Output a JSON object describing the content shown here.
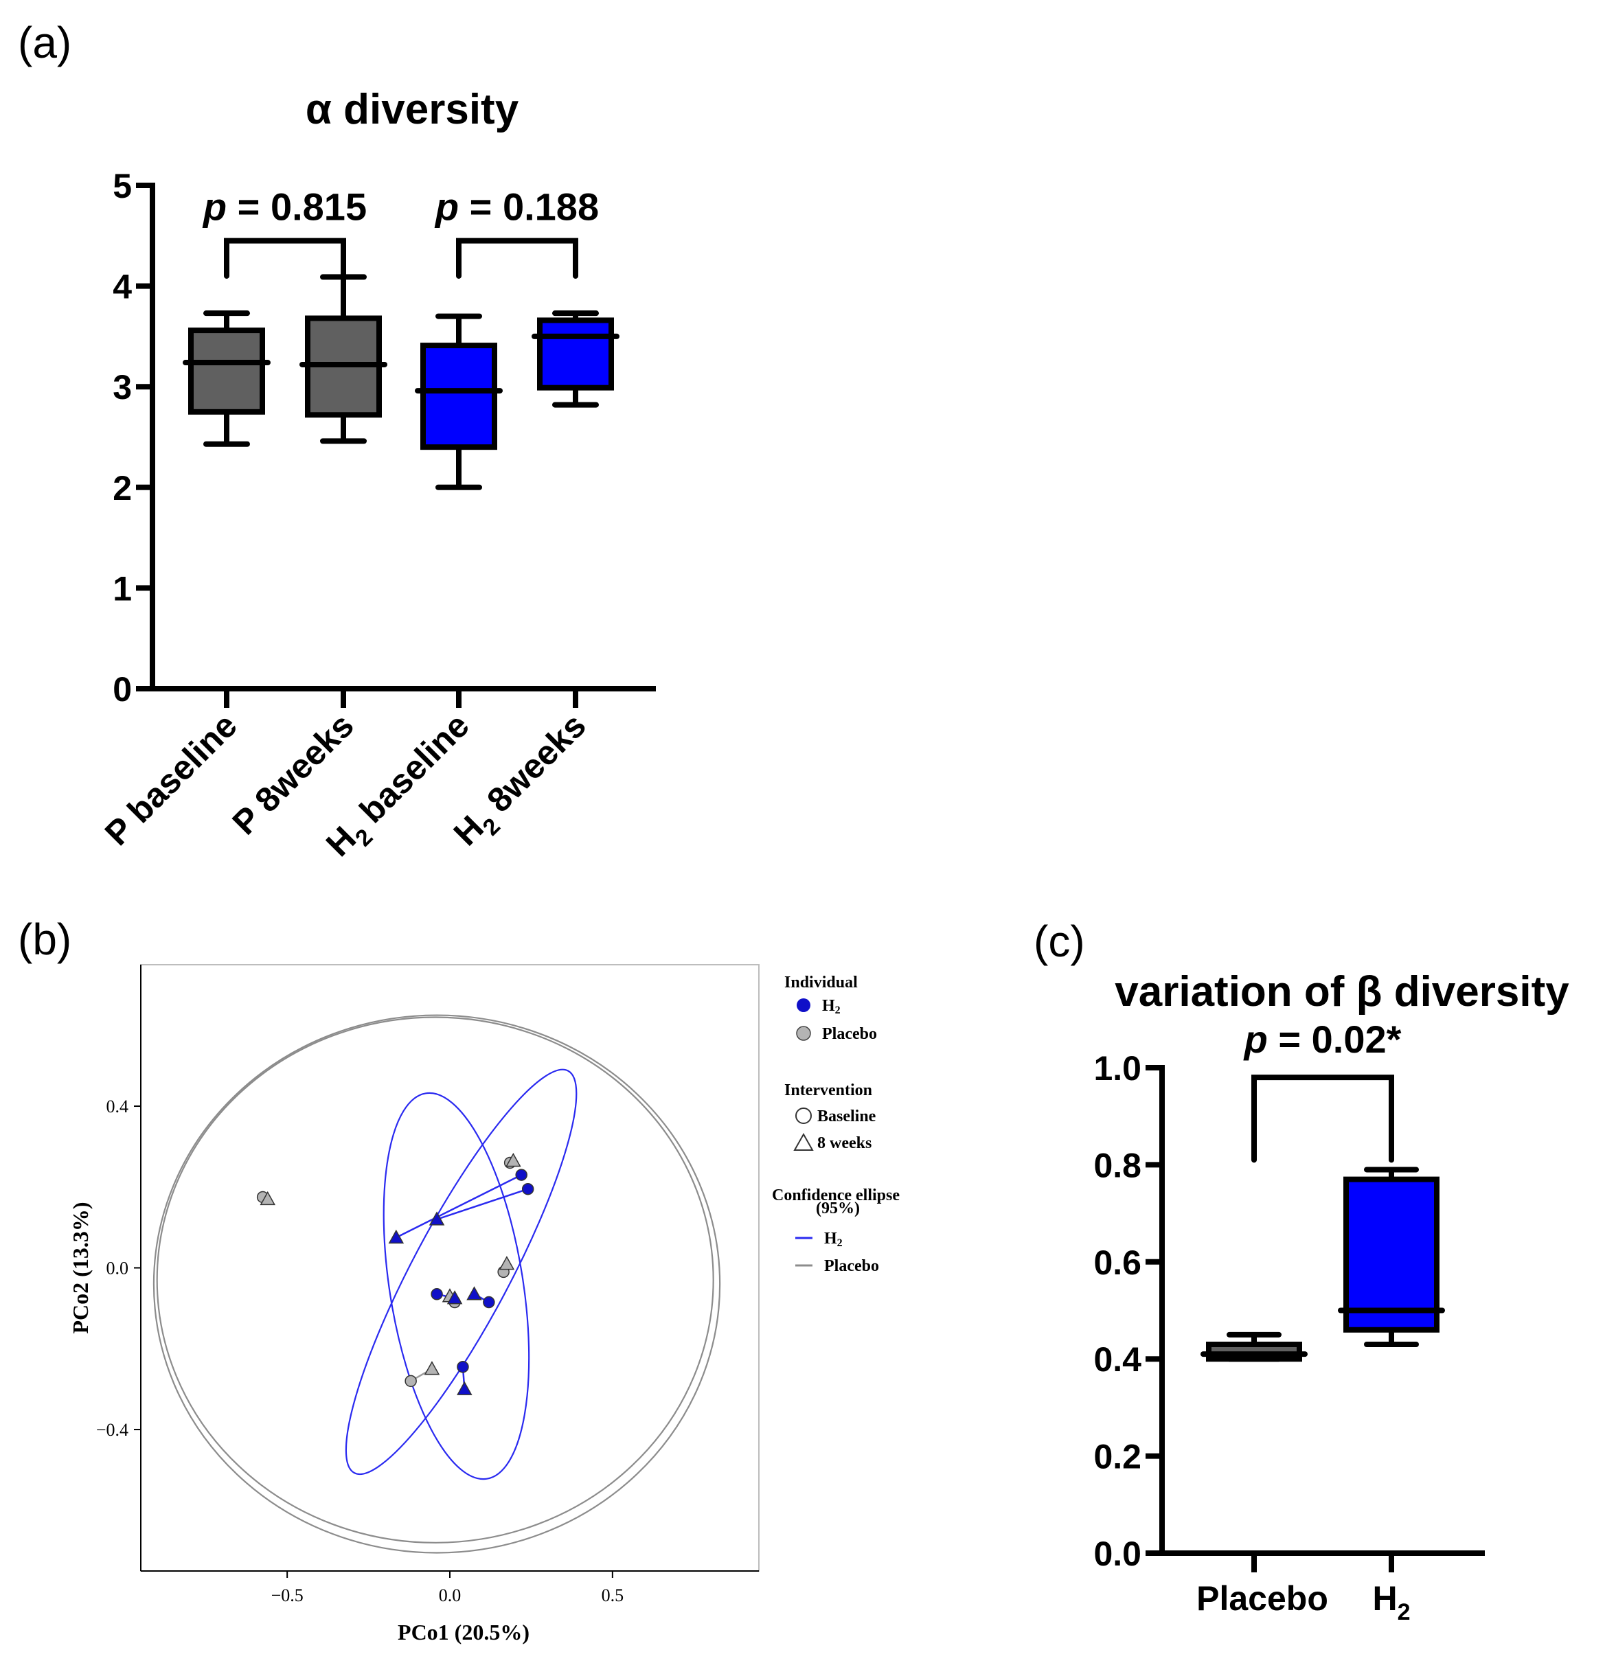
{
  "colors": {
    "placebo": "#606060",
    "h2": "#0000ff",
    "h2_marker": "#1010c8",
    "placebo_marker": "#b4b4b4",
    "placebo_ellipse": "#8c8c8c",
    "h2_ellipse": "#2a2af0"
  },
  "panel_a": {
    "label": "(a)",
    "chart_data": {
      "type": "box",
      "title": "α diversity",
      "categories": [
        {
          "main": "P baseline",
          "sub": ""
        },
        {
          "main": "P 8weeks",
          "sub": ""
        },
        {
          "main": "H",
          "sub": "2",
          "rest": " baseline"
        },
        {
          "main": "H",
          "sub": "2",
          "rest": " 8weeks"
        }
      ],
      "boxes": [
        {
          "min": 2.43,
          "q1": 2.75,
          "median": 3.24,
          "q3": 3.56,
          "max": 3.73,
          "color": "placebo"
        },
        {
          "min": 2.46,
          "q1": 2.72,
          "median": 3.22,
          "q3": 3.68,
          "max": 4.09,
          "color": "placebo"
        },
        {
          "min": 2.0,
          "q1": 2.4,
          "median": 2.96,
          "q3": 3.41,
          "max": 3.7,
          "color": "h2"
        },
        {
          "min": 2.82,
          "q1": 2.99,
          "median": 3.5,
          "q3": 3.66,
          "max": 3.73,
          "color": "h2"
        }
      ],
      "yticks": [
        "0",
        "1",
        "2",
        "3",
        "4",
        "5"
      ],
      "ylim": [
        0,
        5
      ],
      "comparisons": [
        {
          "from": 0,
          "to": 1,
          "p_symbol": "p",
          "p_text": " = 0.815",
          "level": 4.45
        },
        {
          "from": 2,
          "to": 3,
          "p_symbol": "p",
          "p_text": " = 0.188",
          "level": 4.45
        }
      ]
    }
  },
  "panel_b": {
    "label": "(b)",
    "chart_data": {
      "type": "scatter",
      "xlabel": "PCo1 (20.5%)",
      "ylabel": "PCo2 (13.3%)",
      "xlim": [
        -0.95,
        0.95
      ],
      "ylim": [
        -0.75,
        0.75
      ],
      "xticks": [
        "−0.5",
        "0.0",
        "0.5"
      ],
      "xtick_values": [
        -0.5,
        0.0,
        0.5
      ],
      "yticks": [
        "−0.4",
        "0.0",
        "0.4"
      ],
      "ytick_values": [
        -0.4,
        0.0,
        0.4
      ],
      "points": [
        {
          "group": "placebo",
          "time": "baseline",
          "x": -0.575,
          "y": 0.175
        },
        {
          "group": "placebo",
          "time": "8weeks",
          "x": -0.56,
          "y": 0.17
        },
        {
          "group": "placebo",
          "time": "baseline",
          "x": 0.185,
          "y": 0.26
        },
        {
          "group": "placebo",
          "time": "8weeks",
          "x": 0.195,
          "y": 0.265
        },
        {
          "group": "placebo",
          "time": "baseline",
          "x": 0.165,
          "y": -0.01
        },
        {
          "group": "placebo",
          "time": "8weeks",
          "x": 0.175,
          "y": 0.01
        },
        {
          "group": "placebo",
          "time": "baseline",
          "x": 0.015,
          "y": -0.085
        },
        {
          "group": "placebo",
          "time": "8weeks",
          "x": 0.0,
          "y": -0.07
        },
        {
          "group": "placebo",
          "time": "baseline",
          "x": -0.12,
          "y": -0.28
        },
        {
          "group": "placebo",
          "time": "8weeks",
          "x": -0.055,
          "y": -0.25
        },
        {
          "group": "h2",
          "time": "baseline",
          "x": 0.22,
          "y": 0.23
        },
        {
          "group": "h2",
          "time": "8weeks",
          "x": -0.165,
          "y": 0.075
        },
        {
          "group": "h2",
          "time": "baseline",
          "x": 0.24,
          "y": 0.195
        },
        {
          "group": "h2",
          "time": "8weeks",
          "x": -0.04,
          "y": 0.12
        },
        {
          "group": "h2",
          "time": "baseline",
          "x": -0.04,
          "y": -0.065
        },
        {
          "group": "h2",
          "time": "8weeks",
          "x": 0.015,
          "y": -0.075
        },
        {
          "group": "h2",
          "time": "baseline",
          "x": 0.12,
          "y": -0.085
        },
        {
          "group": "h2",
          "time": "8weeks",
          "x": 0.075,
          "y": -0.065
        },
        {
          "group": "h2",
          "time": "baseline",
          "x": 0.04,
          "y": -0.245
        },
        {
          "group": "h2",
          "time": "8weeks",
          "x": 0.045,
          "y": -0.3
        }
      ],
      "pairs": [
        {
          "group": "placebo",
          "a": 0,
          "b": 1
        },
        {
          "group": "placebo",
          "a": 2,
          "b": 3
        },
        {
          "group": "placebo",
          "a": 4,
          "b": 5
        },
        {
          "group": "placebo",
          "a": 6,
          "b": 7
        },
        {
          "group": "placebo",
          "a": 8,
          "b": 9
        },
        {
          "group": "h2",
          "a": 10,
          "b": 11
        },
        {
          "group": "h2",
          "a": 12,
          "b": 13
        },
        {
          "group": "h2",
          "a": 14,
          "b": 15
        },
        {
          "group": "h2",
          "a": 16,
          "b": 17
        },
        {
          "group": "h2",
          "a": 18,
          "b": 19
        }
      ],
      "ellipses": [
        {
          "group": "placebo",
          "cx": -0.045,
          "cy": -0.03,
          "rx": 0.855,
          "ry": 0.65,
          "angle": 0
        },
        {
          "group": "placebo",
          "cx": -0.04,
          "cy": -0.04,
          "rx": 0.87,
          "ry": 0.665,
          "angle": 0
        },
        {
          "group": "h2",
          "cx": 0.035,
          "cy": -0.01,
          "rx": 0.7,
          "ry": 0.12,
          "angle": -62
        },
        {
          "group": "h2",
          "cx": 0.02,
          "cy": -0.045,
          "rx": 0.6,
          "ry": 0.165,
          "angle": -99
        }
      ],
      "legend": {
        "individual_title": "Individual",
        "individual_items": [
          {
            "main": "H",
            "sub": "2",
            "group": "h2"
          },
          {
            "main": "Placebo",
            "sub": "",
            "group": "placebo"
          }
        ],
        "intervention_title": "Intervention",
        "intervention_items": [
          "Baseline",
          "8 weeks"
        ],
        "ellipse_title_line1": "Confidence ellipse",
        "ellipse_title_line2": "(95%)",
        "ellipse_items": [
          {
            "main": "H",
            "sub": "2",
            "group": "h2"
          },
          {
            "main": "Placebo",
            "sub": "",
            "group": "placebo"
          }
        ]
      }
    }
  },
  "panel_c": {
    "label": "(c)",
    "chart_data": {
      "type": "box",
      "title": "variation of β diversity",
      "categories": [
        {
          "main": "Placebo",
          "sub": ""
        },
        {
          "main": "H",
          "sub": "2"
        }
      ],
      "boxes": [
        {
          "min": 0.4,
          "q1": 0.4,
          "median": 0.41,
          "q3": 0.43,
          "max": 0.45,
          "color": "placebo"
        },
        {
          "min": 0.43,
          "q1": 0.46,
          "median": 0.5,
          "q3": 0.77,
          "max": 0.79,
          "color": "h2"
        }
      ],
      "yticks": [
        "0.0",
        "0.2",
        "0.4",
        "0.6",
        "0.8",
        "1.0"
      ],
      "ylim": [
        0,
        1.0
      ],
      "comparisons": [
        {
          "from": 0,
          "to": 1,
          "p_symbol": "p",
          "p_text": " = 0.02*",
          "level": 0.98,
          "left_drop": 0.81,
          "right_drop": 0.81
        }
      ]
    }
  }
}
